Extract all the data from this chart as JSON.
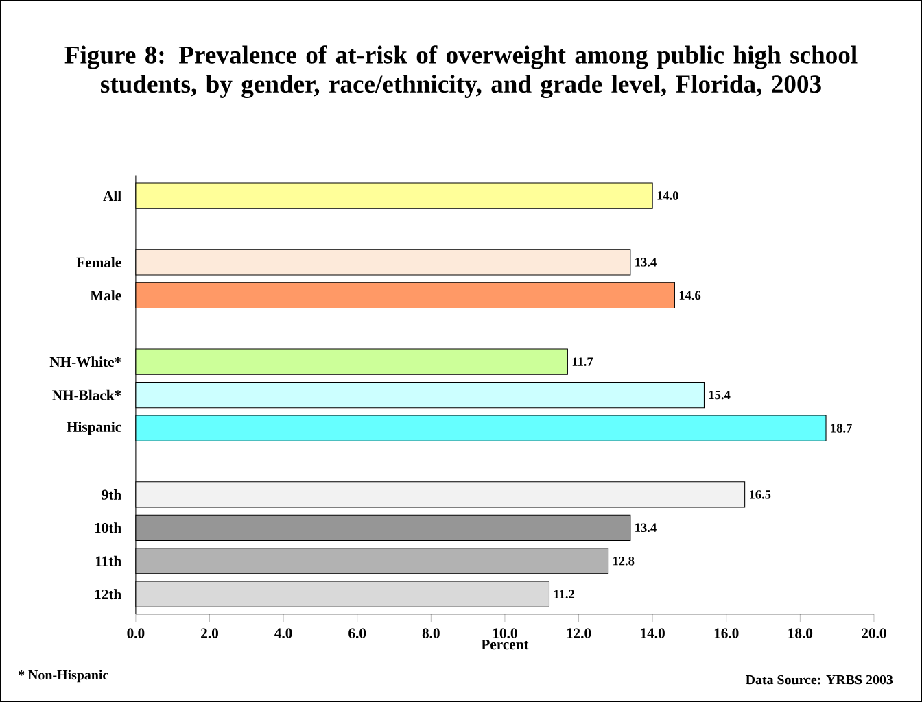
{
  "chart_data": {
    "type": "bar",
    "orientation": "horizontal",
    "title": "Figure 8: Prevalence of at-risk of overweight among public high school students, by gender,  race/ethnicity, and grade level, Florida, 2003",
    "categories": [
      "All",
      null,
      "Female",
      "Male",
      null,
      "NH-White*",
      "NH-Black*",
      "Hispanic",
      null,
      "9th",
      "10th",
      "11th",
      "12th"
    ],
    "values": [
      14.0,
      null,
      13.4,
      14.6,
      null,
      11.7,
      15.4,
      18.7,
      null,
      16.5,
      13.4,
      12.8,
      11.2
    ],
    "value_labels": [
      "14.0",
      null,
      "13.4",
      "14.6",
      null,
      "11.7",
      "15.4",
      "18.7",
      null,
      "16.5",
      "13.4",
      "12.8",
      "11.2"
    ],
    "colors": [
      "#ffff99",
      null,
      "#fdeada",
      "#ff9966",
      null,
      "#ccff99",
      "#ccffff",
      "#66ffff",
      null,
      "#f2f2f2",
      "#969696",
      "#b2b2b2",
      "#d9d9d9"
    ],
    "xlabel": "Percent",
    "xlim": [
      0,
      20
    ],
    "xticks": [
      {
        "value": 0,
        "label": "0.0"
      },
      {
        "value": 2,
        "label": "2.0"
      },
      {
        "value": 4,
        "label": "4.0"
      },
      {
        "value": 6,
        "label": "6.0"
      },
      {
        "value": 8,
        "label": "8.0"
      },
      {
        "value": 10,
        "label": "10.0"
      },
      {
        "value": 12,
        "label": "12.0"
      },
      {
        "value": 14,
        "label": "14.0"
      },
      {
        "value": 16,
        "label": "16.0"
      },
      {
        "value": 18,
        "label": "18.0"
      },
      {
        "value": 20,
        "label": "20.0"
      }
    ],
    "grid": false,
    "annotations": [
      "* Non-Hispanic",
      "Data Source: YRBS 2003"
    ]
  }
}
